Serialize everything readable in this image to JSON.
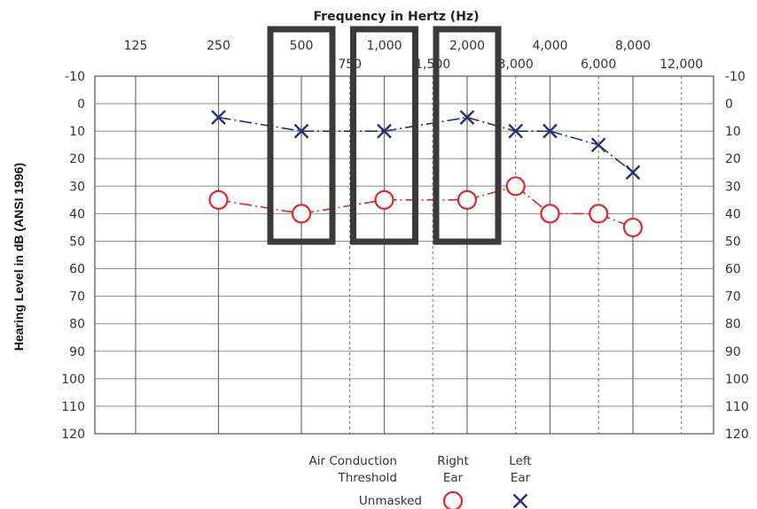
{
  "chart_data": {
    "type": "line",
    "title": "Frequency in Hertz (Hz)",
    "ylabel": "Hearing Level in dB (ANSI 1996)",
    "x_ticks_major": [
      "125",
      "250",
      "500",
      "1,000",
      "2,000",
      "4,000",
      "8,000"
    ],
    "x_ticks_inter": [
      "750",
      "1,500",
      "3,000",
      "6,000",
      "12,000"
    ],
    "y_ticks": [
      "-10",
      "0",
      "10",
      "20",
      "30",
      "40",
      "50",
      "60",
      "70",
      "80",
      "90",
      "100",
      "110",
      "120"
    ],
    "ylim": [
      -10,
      120
    ],
    "y_inverted": true,
    "x_scale": "log2",
    "grid": true,
    "series": [
      {
        "name": "Right Ear",
        "color": "#e8222a",
        "marker": "circle",
        "x": [
          250,
          500,
          1000,
          2000,
          3000,
          4000,
          6000,
          8000
        ],
        "values": [
          35,
          40,
          35,
          35,
          30,
          40,
          40,
          45
        ]
      },
      {
        "name": "Left Ear",
        "color": "#2b2f78",
        "marker": "x",
        "x": [
          250,
          500,
          1000,
          2000,
          3000,
          4000,
          6000,
          8000
        ],
        "values": [
          5,
          10,
          10,
          5,
          10,
          10,
          15,
          25
        ]
      }
    ],
    "highlight_frequencies": [
      500,
      1000,
      2000
    ],
    "highlight_color": "#3a3a3a",
    "legend": {
      "heading_line1": "Air Conduction",
      "heading_line2": "Threshold",
      "right_line1": "Right",
      "right_line2": "Ear",
      "left_line1": "Left",
      "left_line2": "Ear",
      "row_label": "Unmasked"
    }
  }
}
